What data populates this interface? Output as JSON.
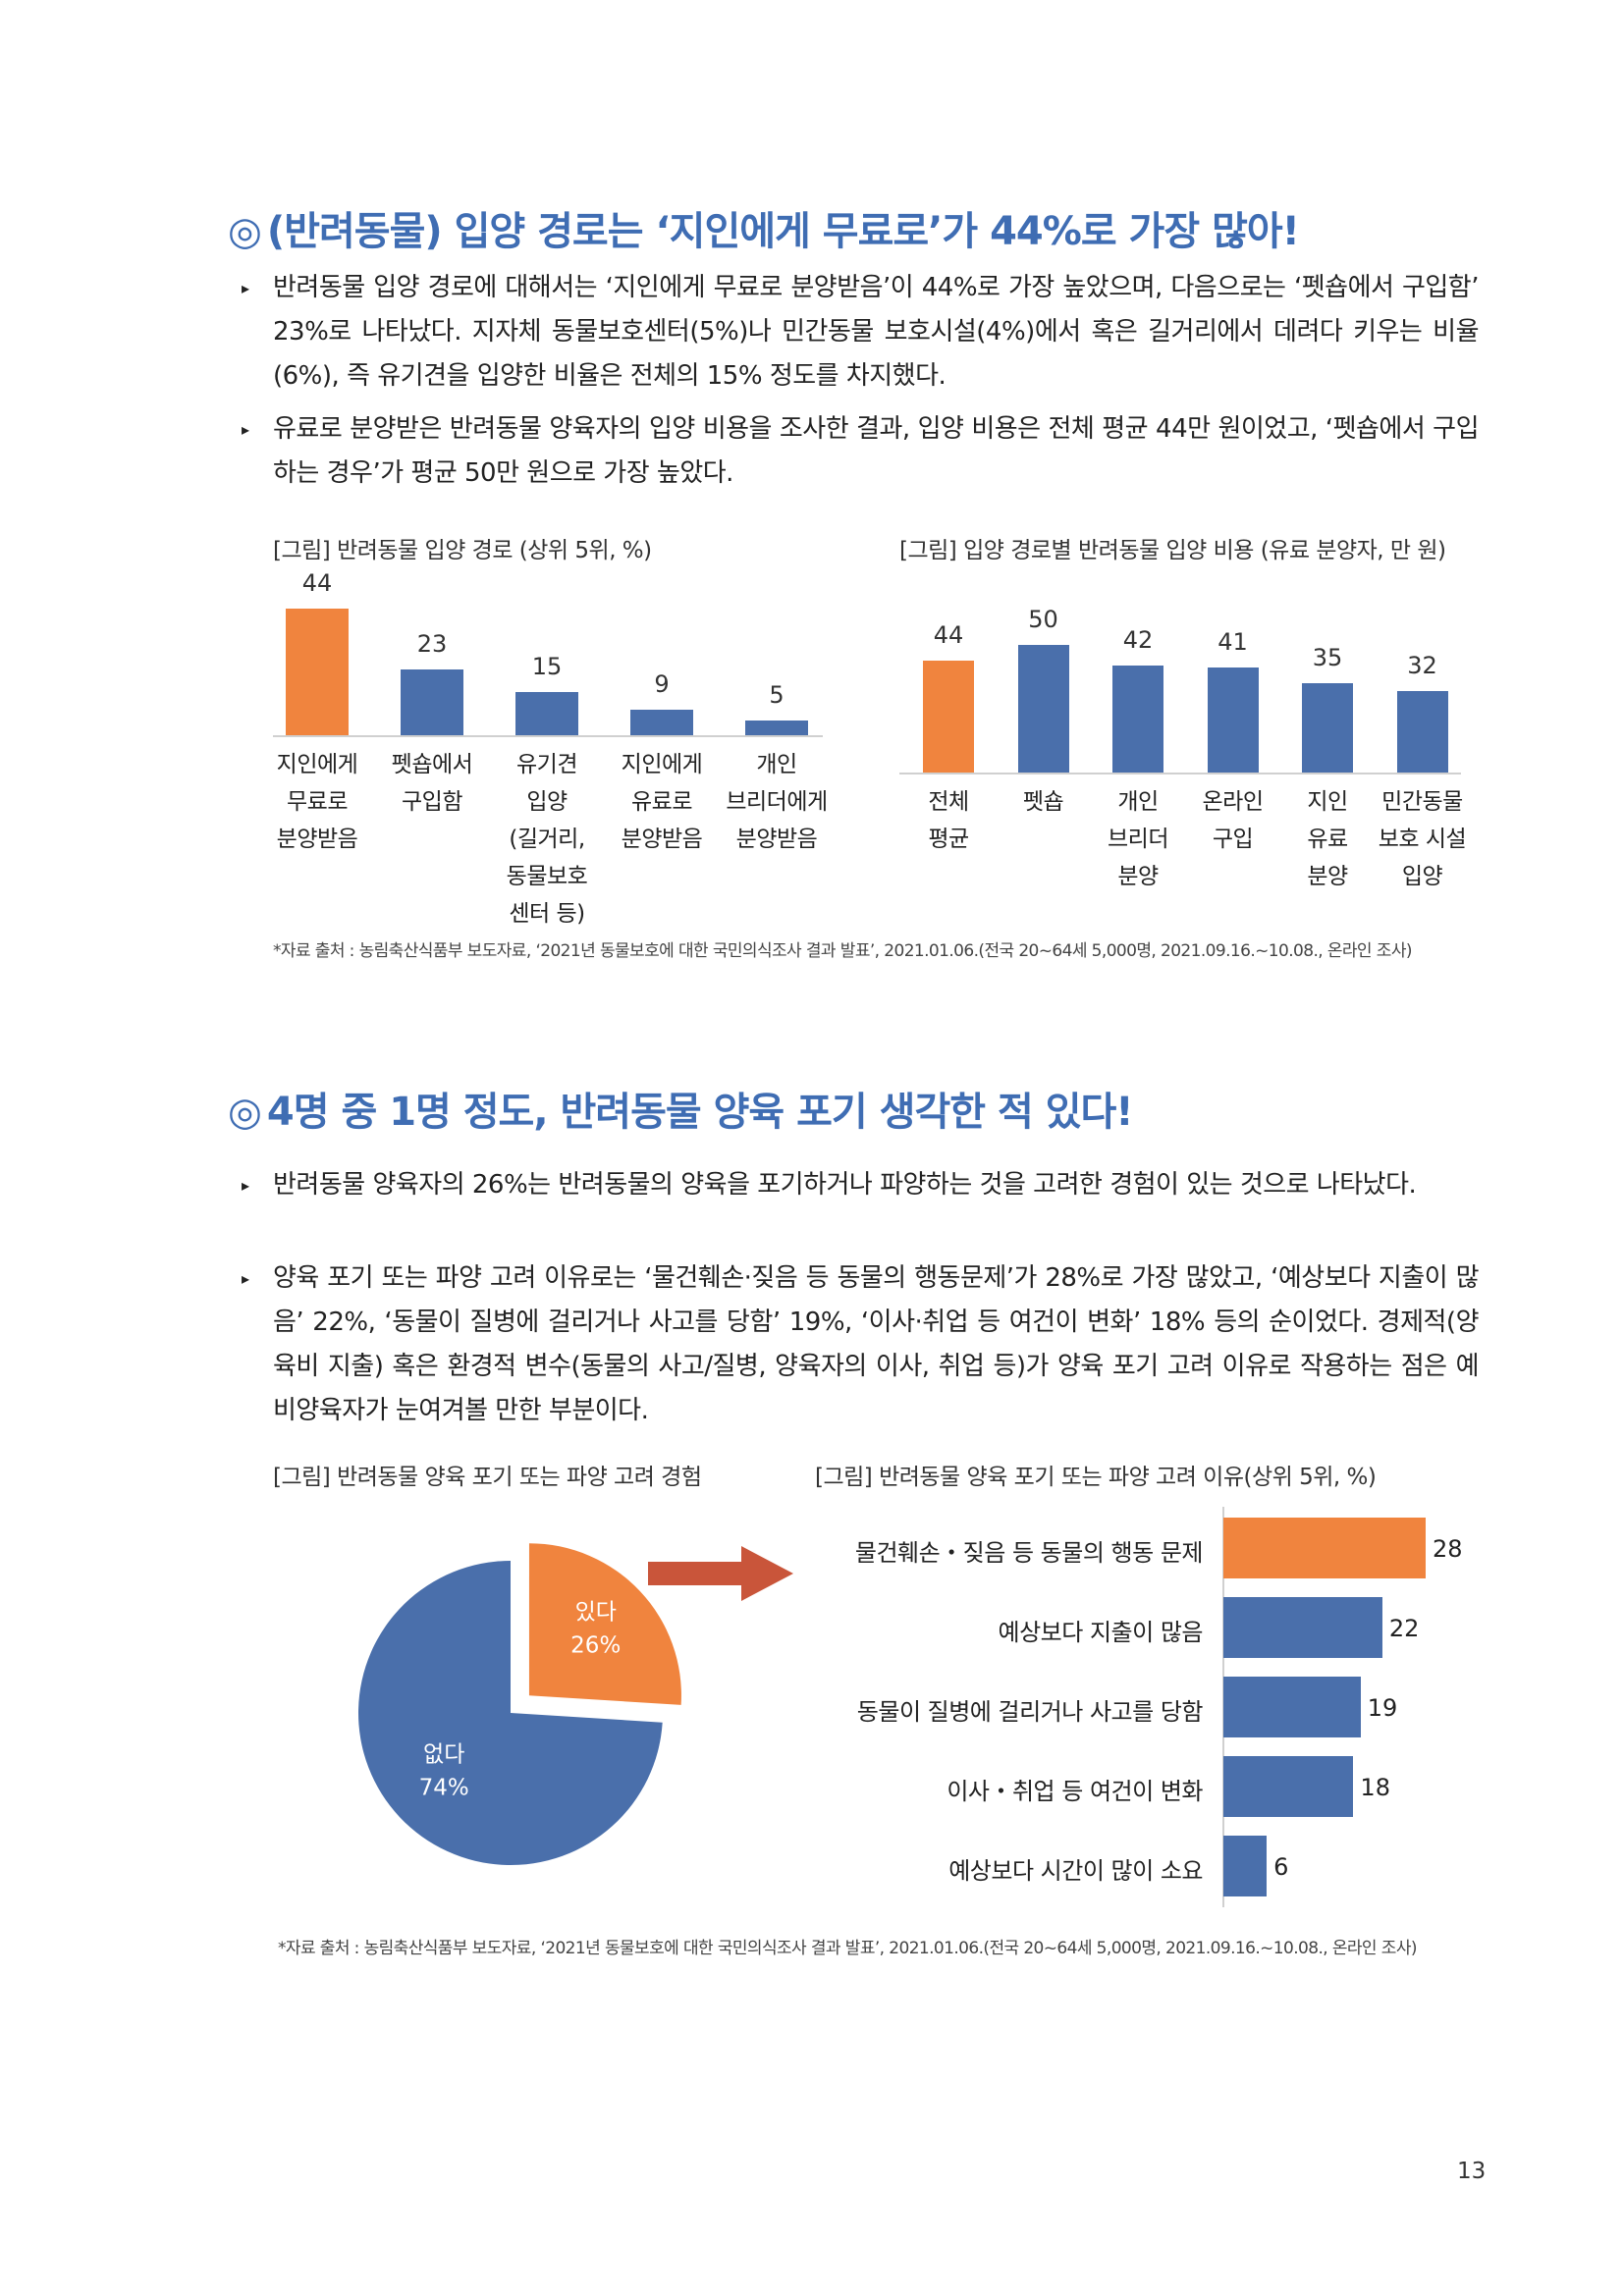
{
  "section1": {
    "heading_mark": "◎",
    "heading": "(반려동물) 입양 경로는 ‘지인에게 무료로’가 44%로 가장 많아!",
    "bullets": [
      "반려동물 입양 경로에 대해서는 ‘지인에게 무료로 분양받음’이 44%로 가장 높았으며, 다음으로는 ‘펫숍에서 구입함’ 23%로 나타났다. 지자체 동물보호센터(5%)나 민간동물 보호시설(4%)에서 혹은 길거리에서 데려다 키우는 비율(6%), 즉 유기견을 입양한 비율은 전체의 15% 정도를 차지했다.",
      "유료로 분양받은 반려동물 양육자의 입양 비용을 조사한 결과, 입양 비용은 전체 평균 44만 원이었고, ‘펫숍에서 구입하는 경우’가 평균 50만 원으로 가장 높았다."
    ],
    "source": "*자료 출처 : 농림축산식품부 보도자료, ‘2021년 동물보호에 대한 국민의식조사 결과 발표’, 2021.01.06.(전국 20~64세 5,000명, 2021.09.16.~10.08., 온라인 조사)"
  },
  "section2": {
    "heading_mark": "◎",
    "heading": "4명 중 1명 정도, 반려동물 양육 포기 생각한 적 있다!",
    "bullets": [
      "반려동물 양육자의 26%는 반려동물의 양육을 포기하거나 파양하는 것을 고려한 경험이 있는 것으로 나타났다.",
      "양육 포기 또는 파양 고려 이유로는 ‘물건훼손·짖음 등 동물의 행동문제’가 28%로 가장 많았고, ‘예상보다 지출이 많음’ 22%, ‘동물이 질병에 걸리거나 사고를 당함’ 19%, ‘이사·취업 등 여건이 변화’ 18% 등의 순이었다. 경제적(양육비 지출) 혹은 환경적 변수(동물의 사고/질병, 양육자의 이사, 취업 등)가 양육 포기 고려 이유로 작용하는 점은 예비양육자가 눈여겨볼 만한 부분이다."
    ],
    "source": "*자료 출처 : 농림축산식품부 보도자료, ‘2021년 동물보호에 대한 국민의식조사 결과 발표’, 2021.01.06.(전국 20~64세 5,000명, 2021.09.16.~10.08., 온라인 조사)"
  },
  "page_number": "13",
  "colors": {
    "heading": "#3f6db3",
    "highlight": "#f0843e",
    "bar": "#4a6fab",
    "arrow": "#c9553a"
  },
  "chart_data": [
    {
      "id": "adoption-route",
      "type": "bar",
      "title": "[그림] 반려동물 입양 경로 (상위 5위, %)",
      "categories": [
        "지인에게\n무료로\n분양받음",
        "펫숍에서\n구입함",
        "유기견\n입양\n(길거리,\n동물보호\n센터 등)",
        "지인에게\n유료로\n분양받음",
        "개인\n브리더에게\n분양받음"
      ],
      "values": [
        44,
        23,
        15,
        9,
        5
      ],
      "highlight_index": 0,
      "ylim": [
        0,
        44
      ]
    },
    {
      "id": "adoption-cost",
      "type": "bar",
      "title": "[그림] 입양 경로별 반려동물 입양 비용 (유료 분양자, 만 원)",
      "categories": [
        "전체\n평균",
        "펫숍",
        "개인\n브리더\n분양",
        "온라인\n구입",
        "지인\n유료\n분양",
        "민간동물\n보호 시설\n입양"
      ],
      "values": [
        44,
        50,
        42,
        41,
        35,
        32
      ],
      "highlight_index": 0,
      "ylim": [
        0,
        50
      ]
    },
    {
      "id": "abandon-experience",
      "type": "pie",
      "title": "[그림] 반려동물 양육 포기 또는 파양 고려 경험",
      "slices": [
        {
          "label": "있다",
          "value": 26,
          "value_label": "26%"
        },
        {
          "label": "없다",
          "value": 74,
          "value_label": "74%"
        }
      ]
    },
    {
      "id": "abandon-reasons",
      "type": "bar",
      "orientation": "horizontal",
      "title": "[그림] 반려동물 양육 포기 또는 파양 고려 이유(상위 5위, %)",
      "categories": [
        "물건훼손・짖음 등 동물의 행동 문제",
        "예상보다 지출이 많음",
        "동물이 질병에 걸리거나 사고를 당함",
        "이사・취업 등 여건이 변화",
        "예상보다 시간이 많이 소요"
      ],
      "values": [
        28,
        22,
        19,
        18,
        6
      ],
      "highlight_index": 0,
      "xlim": [
        0,
        28
      ]
    }
  ]
}
